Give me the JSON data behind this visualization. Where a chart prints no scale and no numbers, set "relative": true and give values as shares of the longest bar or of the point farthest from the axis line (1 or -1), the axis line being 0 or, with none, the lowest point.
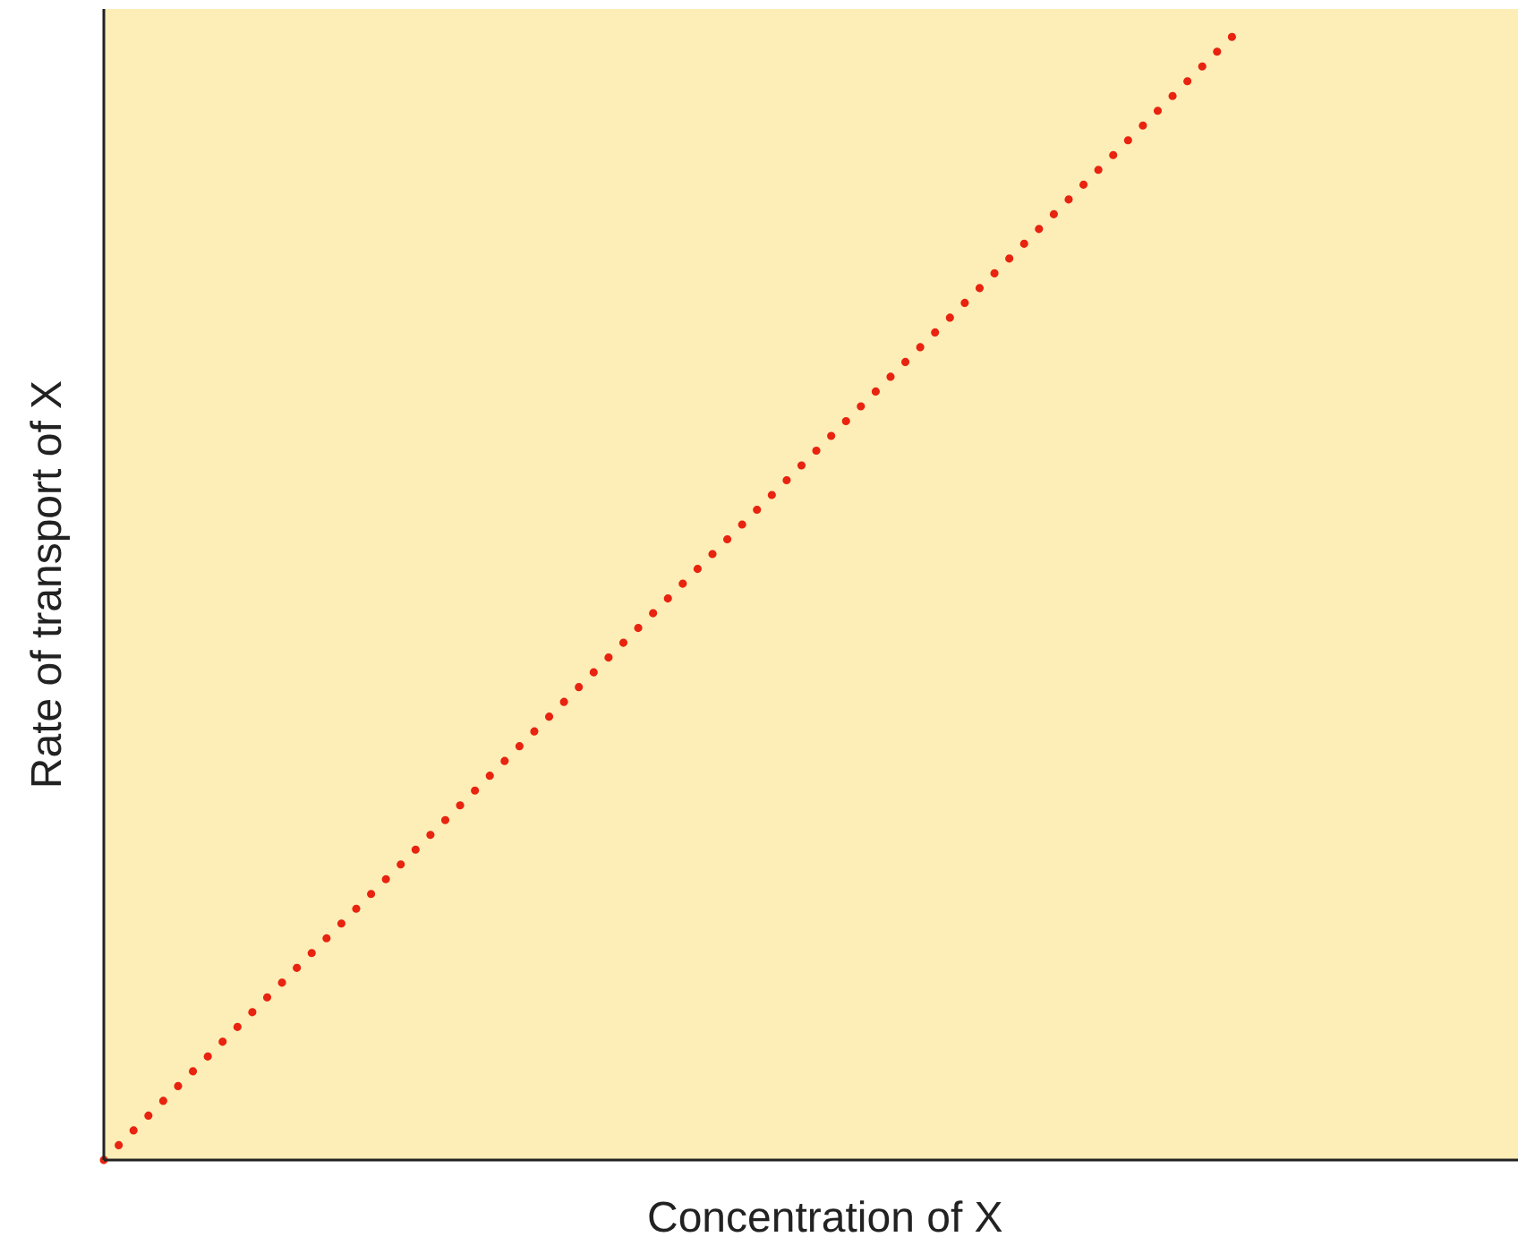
{
  "chart_data": {
    "type": "line",
    "xlabel": "Concentration of X",
    "ylabel": "Rate of transport of X",
    "relative": true,
    "categories": [
      null,
      null,
      null,
      null,
      null,
      null
    ],
    "series": [
      {
        "color": "#e8230f",
        "values": [
          0,
          0.25,
          0.5,
          0.75,
          1,
          null
        ]
      }
    ],
    "marker": "none",
    "line_style": "dotted"
  }
}
